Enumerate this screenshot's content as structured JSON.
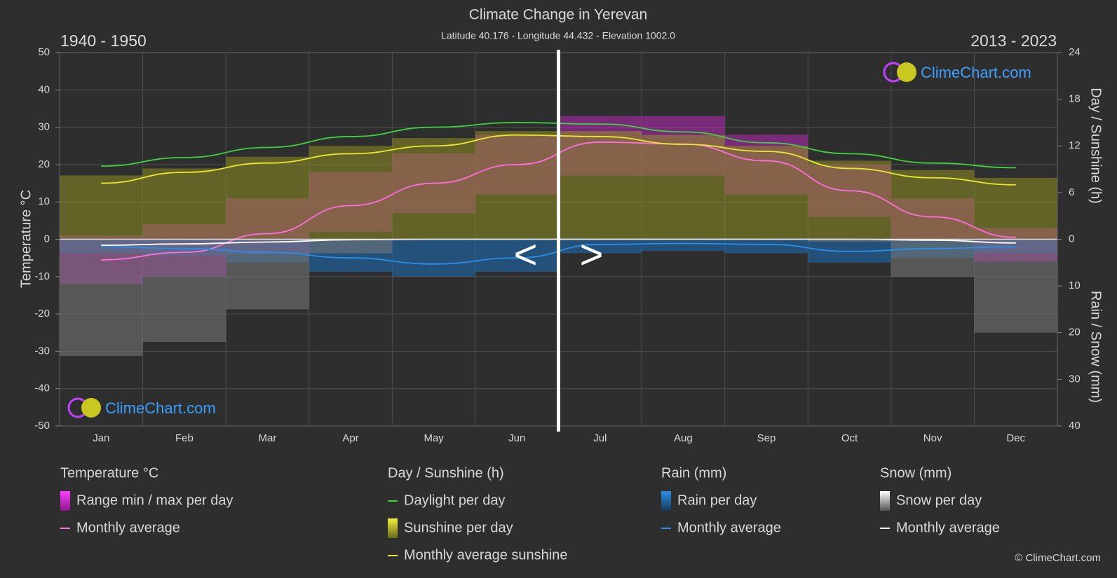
{
  "chart_data": {
    "type": "line",
    "title": "Climate Change in Yerevan",
    "subtitle": "Latitude 40.176 - Longitude 44.432 - Elevation 1002.0",
    "period_left": "1940 - 1950",
    "period_right": "2013 - 2023",
    "nav_prev": "<",
    "nav_next": ">",
    "brand": "ClimeChart.com",
    "brand_bottom": "ClimeChart.com",
    "copyright": "© ClimeChart.com",
    "y_label": "Temperature °C",
    "y2_label": "Day / Sunshine (h)",
    "y3_label": "Rain / Snow (mm)",
    "categories": [
      "Jan",
      "Feb",
      "Mar",
      "Apr",
      "May",
      "Jun",
      "Jul",
      "Aug",
      "Sep",
      "Oct",
      "Nov",
      "Dec"
    ],
    "ylim": [
      -50,
      50
    ],
    "yticks": [
      -50,
      -40,
      -30,
      -20,
      -10,
      0,
      10,
      20,
      30,
      40,
      50
    ],
    "y2lim": [
      0,
      24
    ],
    "y2ticks": [
      0,
      6,
      12,
      18,
      24
    ],
    "y3lim": [
      0,
      40
    ],
    "y3ticks": [
      10,
      20,
      30,
      40
    ],
    "grid": true,
    "groups": [
      {
        "title": "Temperature °C",
        "axis": "y",
        "series": [
          {
            "name": "Range min / max per day",
            "kind": "band",
            "color": "#d526d5",
            "low": [
              -12,
              -10,
              -4,
              2,
              7,
              12,
              17,
              17,
              12,
              6,
              0,
              -6
            ],
            "high": [
              1,
              4,
              11,
              18,
              23,
              28,
              33,
              33,
              28,
              20,
              11,
              3
            ]
          },
          {
            "name": "Monthly average",
            "kind": "line",
            "color": "#ff6fdc",
            "values": [
              -5.5,
              -3.5,
              1.5,
              9,
              15,
              20,
              26,
              25.5,
              21,
              13,
              6,
              0.5
            ]
          }
        ]
      },
      {
        "title": "Day / Sunshine (h)",
        "axis": "y2",
        "series": [
          {
            "name": "Daylight per day",
            "kind": "line",
            "color": "#3fd23f",
            "values": [
              9.4,
              10.5,
              11.8,
              13.2,
              14.4,
              15,
              14.8,
              13.8,
              12.4,
              11,
              9.8,
              9.2
            ]
          },
          {
            "name": "Sunshine per day",
            "kind": "bars",
            "color": "#8f8f22",
            "values": [
              8.2,
              9.1,
              10.6,
              12,
              13,
              13.9,
              13.9,
              13.4,
              12,
              10.1,
              8.9,
              7.9
            ]
          },
          {
            "name": "Monthly average sunshine",
            "kind": "line",
            "color": "#e8e830",
            "values": [
              7.2,
              8.6,
              9.8,
              11,
              12,
              13.4,
              13.2,
              12.2,
              11.3,
              9.1,
              7.9,
              7
            ]
          }
        ]
      },
      {
        "title": "Rain (mm)",
        "axis": "y3",
        "series": [
          {
            "name": "Rain per day",
            "kind": "bars",
            "color": "#1e6fb8",
            "values": [
              3,
              3.5,
              5,
              7,
              8,
              7,
              3,
              2.5,
              3,
              5,
              4,
              3
            ]
          },
          {
            "name": "Monthly average",
            "kind": "line",
            "color": "#2a8ee8",
            "values": [
              1.6,
              2,
              2.8,
              4,
              5.3,
              4,
              1.1,
              0.9,
              1.1,
              2.6,
              2,
              1.6
            ]
          }
        ]
      },
      {
        "title": "Snow (mm)",
        "axis": "y3",
        "series": [
          {
            "name": "Snow per day",
            "kind": "bars",
            "color": "#7a7a7a",
            "values": [
              25,
              22,
              15,
              3,
              0,
              0,
              0,
              0,
              0,
              0.5,
              8,
              20
            ]
          },
          {
            "name": "Monthly average",
            "kind": "line",
            "color": "#ffffff",
            "values": [
              1.3,
              1,
              0.6,
              0.1,
              0,
              0,
              0,
              0,
              0,
              0,
              0.2,
              0.8
            ]
          }
        ]
      }
    ]
  }
}
